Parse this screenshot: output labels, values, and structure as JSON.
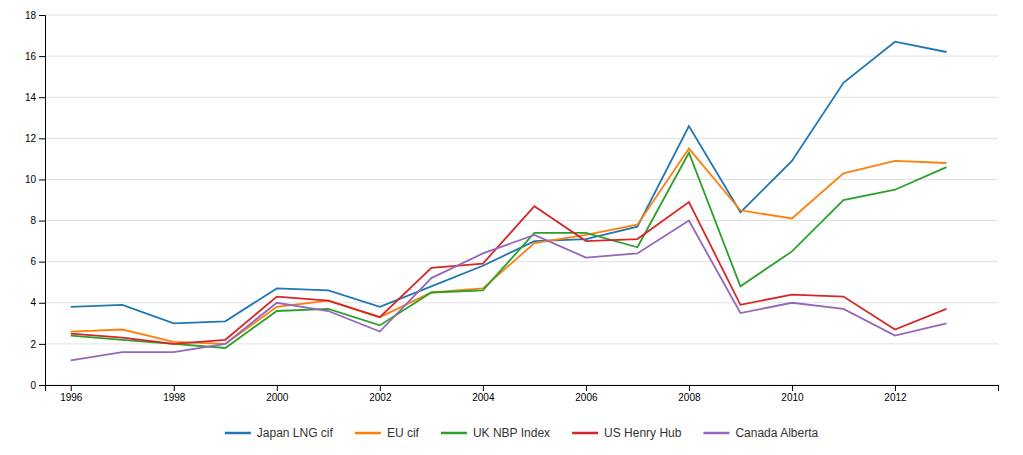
{
  "chart_data": {
    "type": "line",
    "x": [
      1996,
      1997,
      1998,
      1999,
      2000,
      2001,
      2002,
      2003,
      2004,
      2005,
      2006,
      2007,
      2008,
      2009,
      2010,
      2011,
      2012,
      2013
    ],
    "series": [
      {
        "name": "Japan LNG cif",
        "values": [
          3.8,
          3.9,
          3.0,
          3.1,
          4.7,
          4.6,
          3.8,
          4.8,
          5.8,
          7.0,
          7.1,
          7.7,
          12.6,
          8.4,
          10.9,
          14.7,
          16.7,
          16.2
        ]
      },
      {
        "name": "EU cif",
        "values": [
          2.6,
          2.7,
          2.1,
          2.0,
          3.8,
          4.1,
          3.3,
          4.5,
          4.7,
          6.9,
          7.3,
          7.8,
          11.5,
          8.5,
          8.1,
          10.3,
          10.9,
          10.8
        ]
      },
      {
        "name": "UK NBP Index",
        "values": [
          2.4,
          2.2,
          2.0,
          1.8,
          3.6,
          3.7,
          2.9,
          4.5,
          4.6,
          7.4,
          7.4,
          6.7,
          11.3,
          4.8,
          6.5,
          9.0,
          9.5,
          10.6
        ]
      },
      {
        "name": "US Henry Hub",
        "values": [
          2.5,
          2.3,
          2.0,
          2.2,
          4.3,
          4.1,
          3.3,
          5.7,
          5.9,
          8.7,
          7.0,
          7.1,
          8.9,
          3.9,
          4.4,
          4.3,
          2.7,
          3.7
        ]
      },
      {
        "name": "Canada Alberta",
        "values": [
          1.2,
          1.6,
          1.6,
          2.0,
          4.0,
          3.6,
          2.6,
          5.2,
          6.4,
          7.3,
          6.2,
          6.4,
          8.0,
          3.5,
          4.0,
          3.7,
          2.4,
          3.0
        ]
      }
    ],
    "xlim": [
      1995.5,
      2014.0
    ],
    "ylim": [
      0,
      18
    ],
    "xticks": [
      1996,
      1998,
      2000,
      2002,
      2004,
      2006,
      2008,
      2010,
      2012
    ],
    "yticks": [
      0,
      2,
      4,
      6,
      8,
      10,
      12,
      14,
      16,
      18
    ],
    "grid": true,
    "legend": "bottom"
  }
}
